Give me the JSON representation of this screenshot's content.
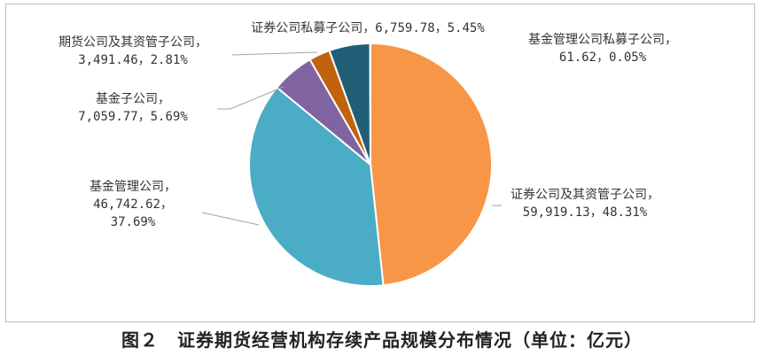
{
  "chart_data": {
    "type": "pie",
    "unit": "亿元",
    "caption": "图２　证券期货经营机构存续产品规模分布情况（单位：亿元）",
    "slices": [
      {
        "name": "证券公司及其资管子公司",
        "value": 59919.13,
        "value_label": "59,919.13",
        "percent_label": "48.31%",
        "color": "#F79646"
      },
      {
        "name": "基金管理公司",
        "value": 46742.62,
        "value_label": "46,742.62",
        "percent_label": "37.69%",
        "color": "#4BACC6"
      },
      {
        "name": "基金子公司",
        "value": 7059.77,
        "value_label": "7,059.77",
        "percent_label": "5.69%",
        "color": "#8064A2"
      },
      {
        "name": "期货公司及其资管子公司",
        "value": 3491.46,
        "value_label": "3,491.46",
        "percent_label": "2.81%",
        "color": "#C0620E"
      },
      {
        "name": "证券公司私募子公司",
        "value": 6759.78,
        "value_label": "6,759.78",
        "percent_label": "5.45%",
        "color": "#215F76"
      },
      {
        "name": "基金管理公司私募子公司",
        "value": 61.62,
        "value_label": "61.62",
        "percent_label": "0.05%",
        "color": "#9BBB59"
      }
    ],
    "legend": "none"
  }
}
